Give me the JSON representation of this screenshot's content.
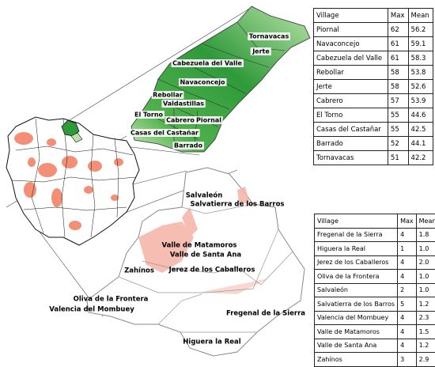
{
  "upper_table": {
    "header": [
      "Village",
      "Max",
      "Mean"
    ],
    "rows": [
      [
        "Piornal",
        "62",
        "56.2"
      ],
      [
        "Navaconcejo",
        "61",
        "59.1"
      ],
      [
        "Cabezuela del Valle",
        "61",
        "58.3"
      ],
      [
        "Rebollar",
        "58",
        "53.8"
      ],
      [
        "Jerte",
        "58",
        "52.6"
      ],
      [
        "Cabrero",
        "57",
        "53.9"
      ],
      [
        "El Torno",
        "55",
        "44.6"
      ],
      [
        "Casas del Castañar",
        "55",
        "42.5"
      ],
      [
        "Barrado",
        "52",
        "44.1"
      ],
      [
        "Tornavacas",
        "51",
        "42.2"
      ]
    ]
  },
  "lower_table": {
    "header": [
      "Village",
      "Max",
      "Mean"
    ],
    "rows": [
      [
        "Fregenal de la Sierra",
        "4",
        "1.8"
      ],
      [
        "Higuera la Real",
        "1",
        "1.0"
      ],
      [
        "Jerez de los Caballeros",
        "4",
        "2.0"
      ],
      [
        "Oliva de la Frontera",
        "4",
        "1.0"
      ],
      [
        "Salvaleón",
        "2",
        "1.0"
      ],
      [
        "Salvatierra de los Barros",
        "5",
        "1.2"
      ],
      [
        "Valencia del Mombuey",
        "4",
        "2.3"
      ],
      [
        "Valle de Matamoros",
        "4",
        "1.5"
      ],
      [
        "Valle de Santa Ana",
        "4",
        "1.2"
      ],
      [
        "Zahínos",
        "3",
        "2.9"
      ]
    ]
  },
  "upper_map": {
    "labels": [
      "Tornavacas",
      "Jerte",
      "Cabezuela del Valle",
      "Navaconcejo",
      "Rebollar",
      "Valdastillas",
      "El Torno",
      "Cabrero",
      "Piornal",
      "Casas del Castañar",
      "Barrado"
    ]
  },
  "lower_map": {
    "labels": [
      "Salvaleón",
      "Salvatierra de los Barros",
      "Valle de Matamoros",
      "Valle de Santa Ana",
      "Zahínos",
      "Jerez de los Caballeros",
      "Oliva de la Frontera",
      "Valencia del Mombuey",
      "Fregenal de la Sierra",
      "Higuera la Real"
    ]
  }
}
